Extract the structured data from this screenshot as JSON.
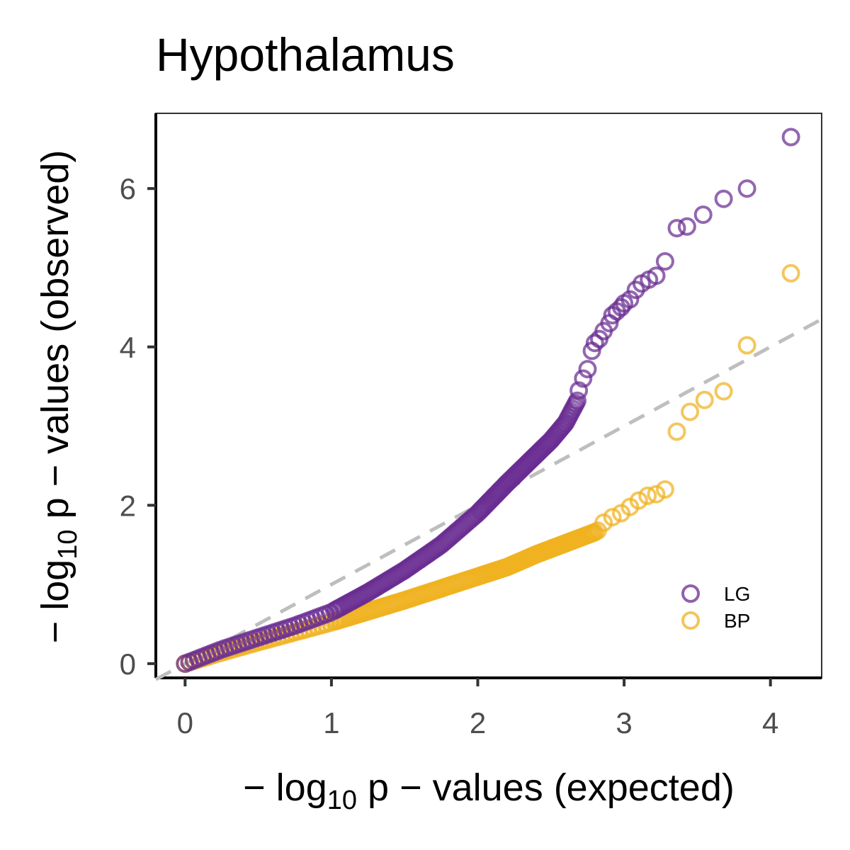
{
  "chart_data": {
    "type": "scatter",
    "title": "Hypothalamus",
    "xlabel": {
      "prefix": "− log",
      "sub": "10",
      "suffix": " p − values (expected)"
    },
    "ylabel": {
      "prefix": "− log",
      "sub": "10",
      "suffix": " p − values (observed)"
    },
    "xlim": [
      -0.2,
      4.35
    ],
    "ylim": [
      -0.18,
      6.95
    ],
    "xticks": [
      0,
      1,
      2,
      3,
      4
    ],
    "yticks": [
      0,
      2,
      4,
      6
    ],
    "reference_line": {
      "type": "y=x",
      "color": "#bebebe",
      "style": "dashed"
    },
    "grid": false,
    "legend_position": "bottom-right",
    "series": [
      {
        "name": "LG",
        "color": "#6a2c91",
        "marker": "open-circle",
        "curve": [
          [
            0,
            0
          ],
          [
            0.25,
            0.18
          ],
          [
            0.5,
            0.33
          ],
          [
            0.75,
            0.48
          ],
          [
            1.0,
            0.65
          ],
          [
            1.25,
            0.9
          ],
          [
            1.5,
            1.18
          ],
          [
            1.75,
            1.5
          ],
          [
            2.0,
            1.9
          ],
          [
            2.2,
            2.28
          ],
          [
            2.4,
            2.64
          ],
          [
            2.5,
            2.82
          ],
          [
            2.6,
            3.04
          ],
          [
            2.68,
            3.32
          ]
        ],
        "top_points": [
          [
            2.69,
            3.45
          ],
          [
            2.72,
            3.6
          ],
          [
            2.75,
            3.72
          ],
          [
            2.78,
            3.95
          ],
          [
            2.8,
            4.05
          ],
          [
            2.83,
            4.1
          ],
          [
            2.86,
            4.2
          ],
          [
            2.9,
            4.3
          ],
          [
            2.92,
            4.4
          ],
          [
            2.95,
            4.45
          ],
          [
            2.98,
            4.5
          ],
          [
            3.0,
            4.55
          ],
          [
            3.04,
            4.6
          ],
          [
            3.08,
            4.72
          ],
          [
            3.12,
            4.8
          ],
          [
            3.17,
            4.85
          ],
          [
            3.22,
            4.9
          ],
          [
            3.28,
            5.08
          ],
          [
            3.36,
            5.5
          ],
          [
            3.43,
            5.52
          ],
          [
            3.54,
            5.67
          ],
          [
            3.68,
            5.87
          ],
          [
            3.84,
            6.0
          ],
          [
            4.14,
            6.65
          ]
        ]
      },
      {
        "name": "BP",
        "color": "#f0b21f",
        "marker": "open-circle",
        "curve": [
          [
            0,
            0
          ],
          [
            0.25,
            0.14
          ],
          [
            0.5,
            0.27
          ],
          [
            1.0,
            0.52
          ],
          [
            1.5,
            0.8
          ],
          [
            2.0,
            1.1
          ],
          [
            2.2,
            1.22
          ],
          [
            2.4,
            1.38
          ],
          [
            2.6,
            1.52
          ],
          [
            2.8,
            1.66
          ]
        ],
        "top_points": [
          [
            2.82,
            1.68
          ],
          [
            2.86,
            1.78
          ],
          [
            2.92,
            1.85
          ],
          [
            2.98,
            1.9
          ],
          [
            3.04,
            1.98
          ],
          [
            3.1,
            2.06
          ],
          [
            3.16,
            2.12
          ],
          [
            3.22,
            2.14
          ],
          [
            3.28,
            2.2
          ],
          [
            3.36,
            2.93
          ],
          [
            3.45,
            3.18
          ],
          [
            3.55,
            3.33
          ],
          [
            3.68,
            3.44
          ],
          [
            3.84,
            4.02
          ],
          [
            4.14,
            4.93
          ]
        ]
      }
    ]
  }
}
